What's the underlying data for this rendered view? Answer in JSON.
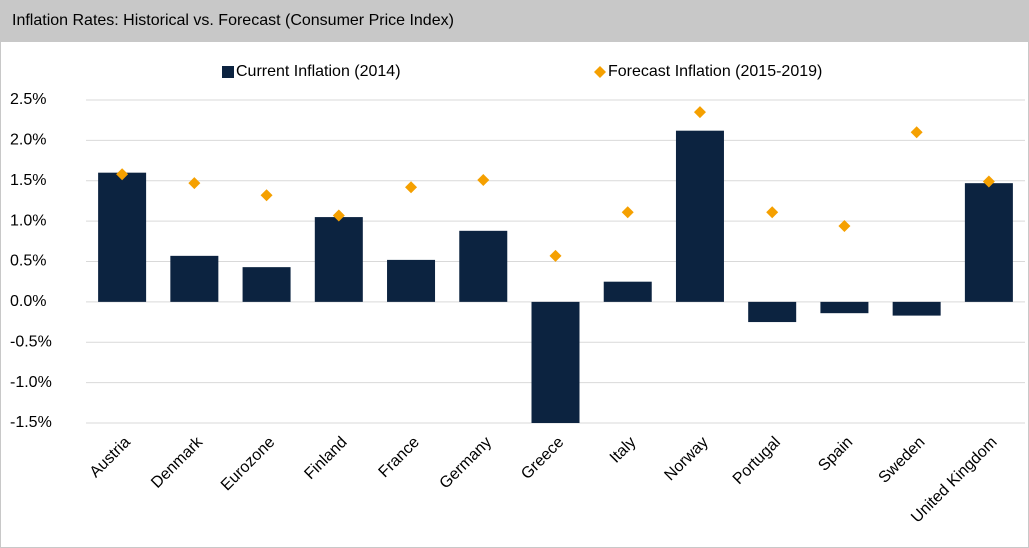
{
  "chart_data": {
    "type": "bar",
    "title": "Inflation Rates: Historical vs. Forecast (Consumer Price Index)",
    "categories": [
      "Austria",
      "Denmark",
      "Eurozone",
      "Finland",
      "France",
      "Germany",
      "Greece",
      "Italy",
      "Norway",
      "Portugal",
      "Spain",
      "Sweden",
      "United Kingdom"
    ],
    "series": [
      {
        "name": "Current Inflation (2014)",
        "color": "#0c2340",
        "mark": "bar",
        "values": [
          1.6,
          0.57,
          0.43,
          1.05,
          0.52,
          0.88,
          -1.5,
          0.25,
          2.12,
          -0.25,
          -0.14,
          -0.17,
          1.47
        ]
      },
      {
        "name": "Forecast Inflation (2015-2019)",
        "color": "#f5a000",
        "mark": "diamond",
        "values": [
          1.58,
          1.47,
          1.32,
          1.07,
          1.42,
          1.51,
          0.57,
          1.11,
          2.35,
          1.11,
          0.94,
          2.1,
          1.49
        ]
      }
    ],
    "ylim": [
      -1.5,
      2.5
    ],
    "yticks": [
      {
        "value": -1.5,
        "label": "-1.5%"
      },
      {
        "value": -1.0,
        "label": "-1.0%"
      },
      {
        "value": -0.5,
        "label": "-0.5%"
      },
      {
        "value": 0,
        "label": "0.0%"
      },
      {
        "value": 0.5,
        "label": "0.5%"
      },
      {
        "value": 1.0,
        "label": "1.0%"
      },
      {
        "value": 1.5,
        "label": "1.5%"
      },
      {
        "value": 2.0,
        "label": "2.0%"
      },
      {
        "value": 2.5,
        "label": "2.5%"
      }
    ],
    "grid": true,
    "legend": "top"
  }
}
